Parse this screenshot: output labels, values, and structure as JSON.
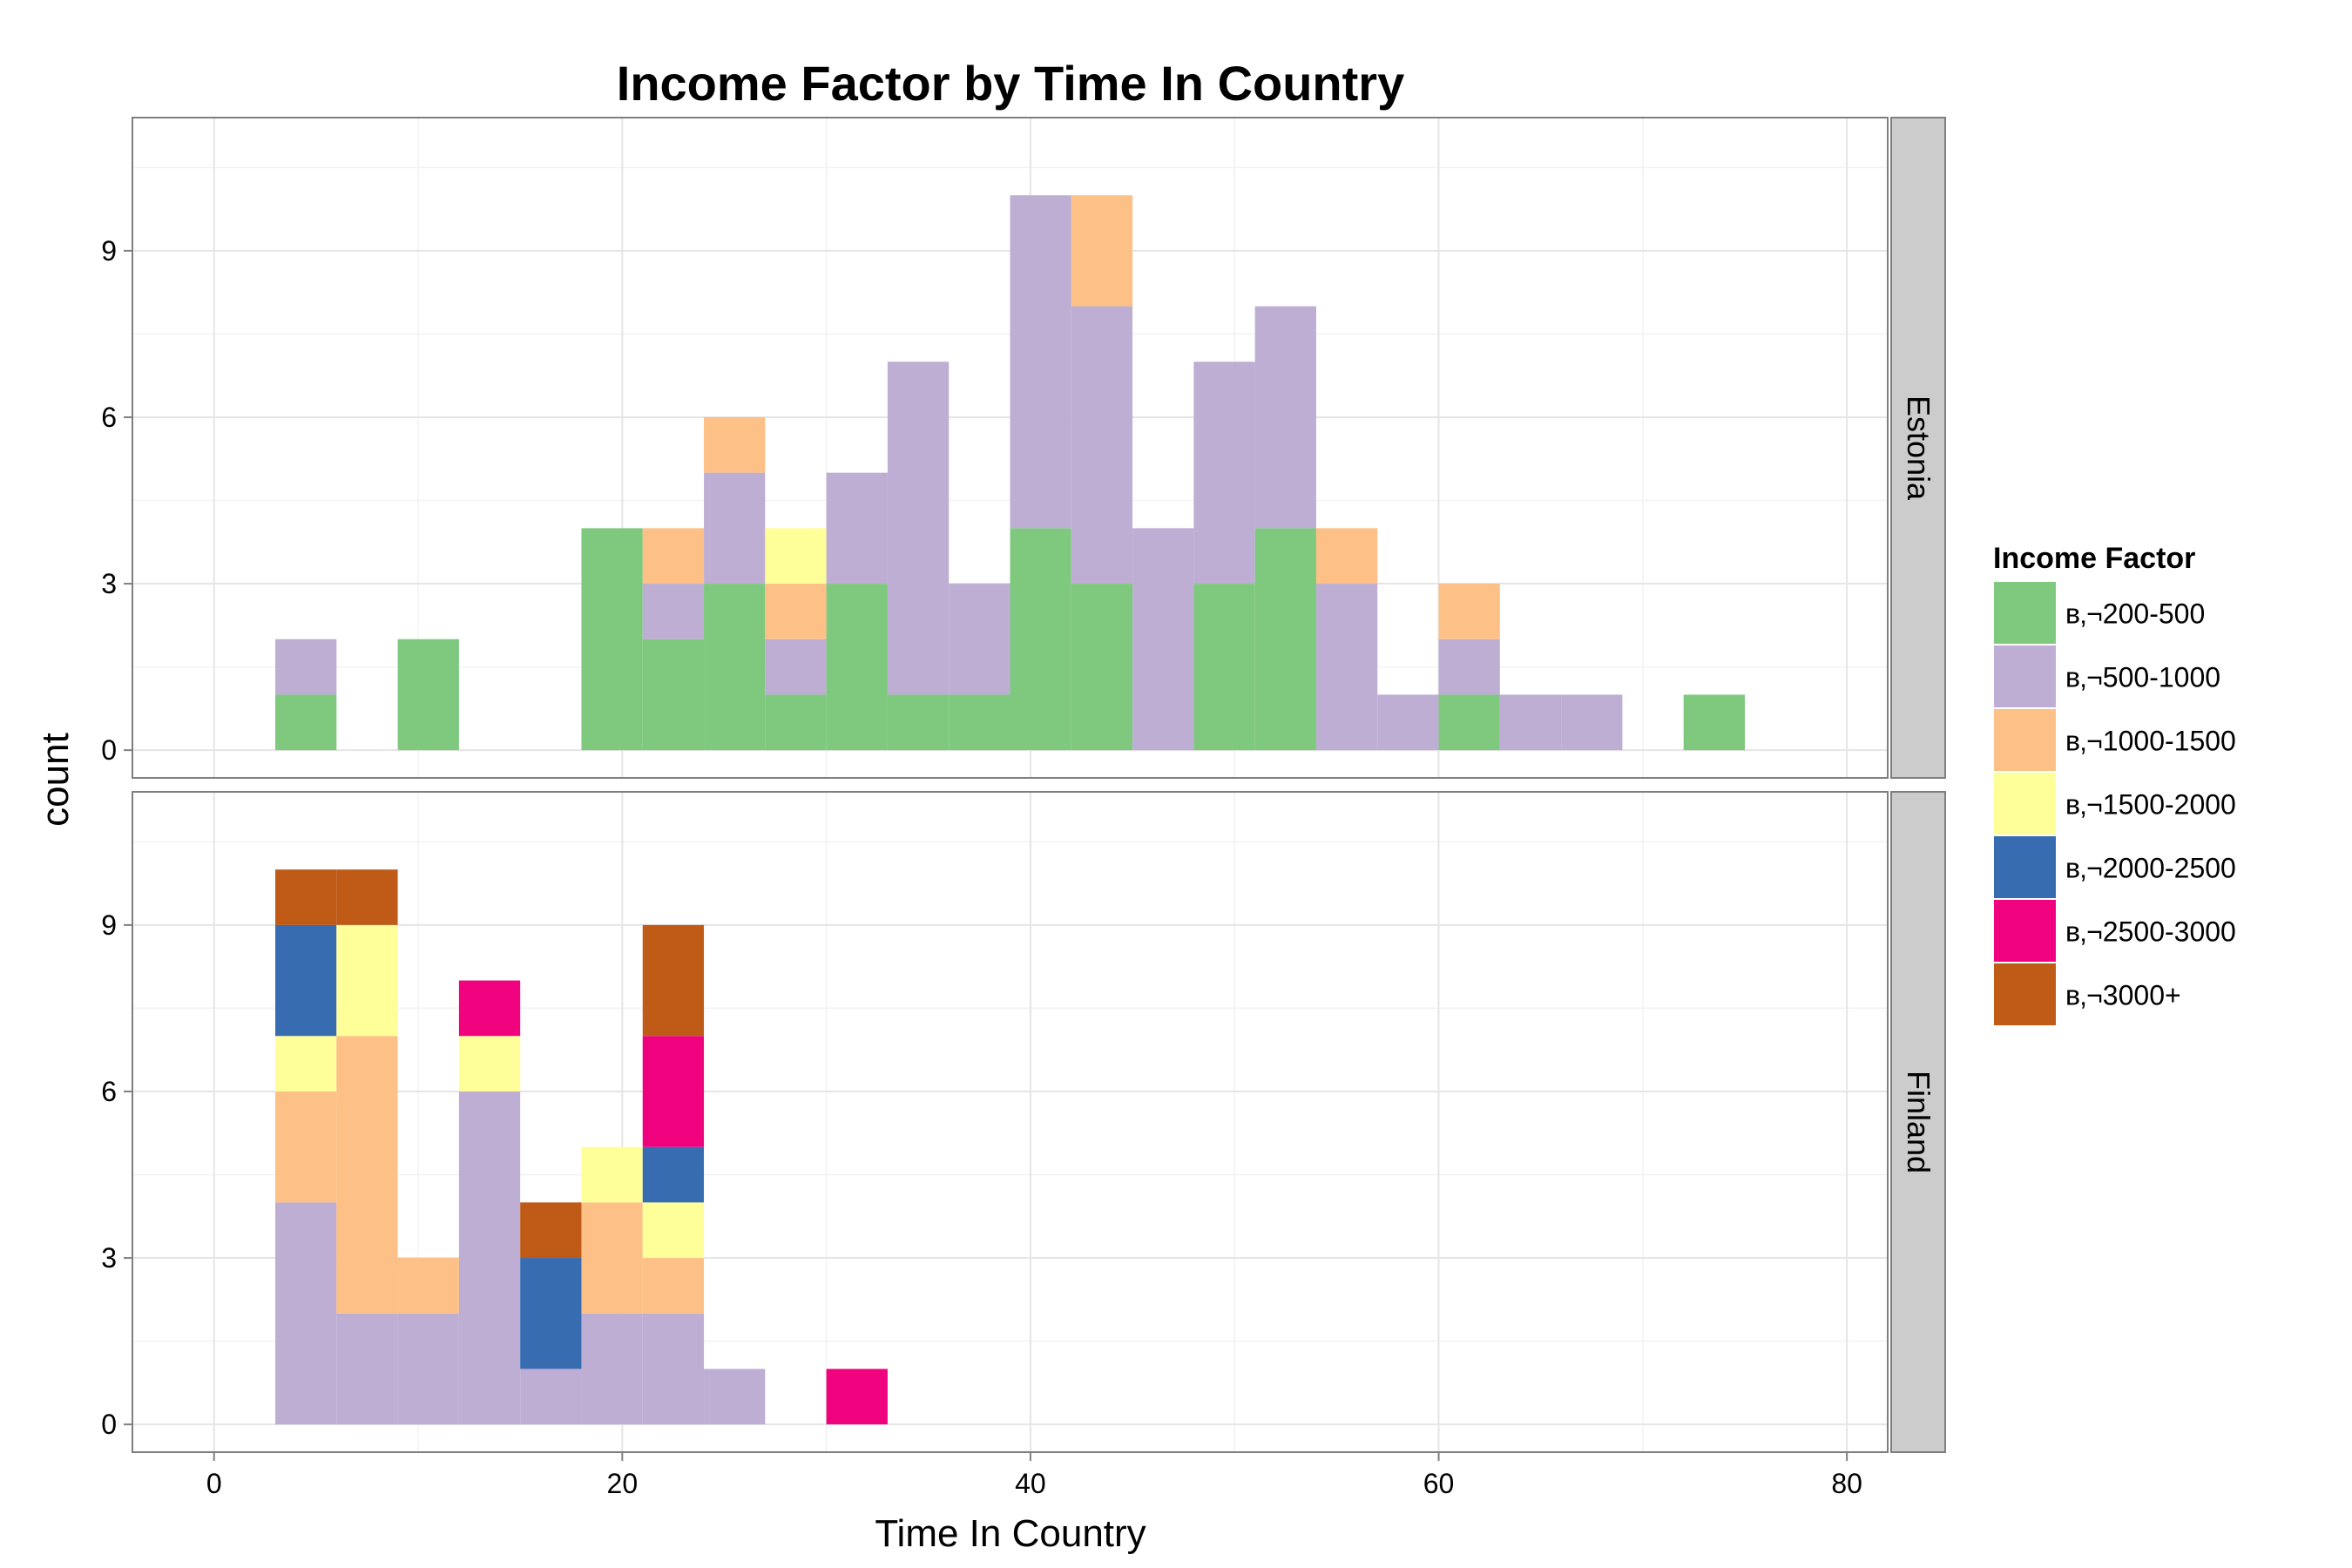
{
  "chart_data": {
    "type": "bar",
    "subtype": "stacked-histogram-faceted",
    "title": "Income Factor by Time In Country",
    "xlabel": "Time In Country",
    "ylabel": "count",
    "xlim": [
      -4,
      82
    ],
    "ylim": [
      -0.5,
      11.4
    ],
    "xticks": [
      0,
      20,
      40,
      60,
      80
    ],
    "yticks": [
      0,
      3,
      6,
      9
    ],
    "bin_width": 3,
    "grid": true,
    "legend": {
      "title": "Income Factor",
      "placement": "right",
      "entries": [
        {
          "label": "в‚¬200-500",
          "color": "#7FC97F"
        },
        {
          "label": "в‚¬500-1000",
          "color": "#BEAED4"
        },
        {
          "label": "в‚¬1000-1500",
          "color": "#FDC086"
        },
        {
          "label": "в‚¬1500-2000",
          "color": "#FFFF99"
        },
        {
          "label": "в‚¬2000-2500",
          "color": "#386CB0"
        },
        {
          "label": "в‚¬2500-3000",
          "color": "#F0027F"
        },
        {
          "label": "в‚¬3000+",
          "color": "#BF5B17"
        }
      ]
    },
    "facets": [
      {
        "name": "Estonia",
        "bins": [
          {
            "x0": 3,
            "counts": [
              1,
              1,
              0,
              0,
              0,
              0,
              0
            ]
          },
          {
            "x0": 9,
            "counts": [
              2,
              0,
              0,
              0,
              0,
              0,
              0
            ]
          },
          {
            "x0": 18,
            "counts": [
              4,
              0,
              0,
              0,
              0,
              0,
              0
            ]
          },
          {
            "x0": 21,
            "counts": [
              2,
              1,
              1,
              0,
              0,
              0,
              0
            ]
          },
          {
            "x0": 24,
            "counts": [
              3,
              2,
              1,
              0,
              0,
              0,
              0
            ]
          },
          {
            "x0": 27,
            "counts": [
              1,
              1,
              1,
              1,
              0,
              0,
              0
            ]
          },
          {
            "x0": 30,
            "counts": [
              3,
              2,
              0,
              0,
              0,
              0,
              0
            ]
          },
          {
            "x0": 33,
            "counts": [
              1,
              6,
              0,
              0,
              0,
              0,
              0
            ]
          },
          {
            "x0": 36,
            "counts": [
              1,
              2,
              0,
              0,
              0,
              0,
              0
            ]
          },
          {
            "x0": 39,
            "counts": [
              4,
              6,
              0,
              0,
              0,
              0,
              0
            ]
          },
          {
            "x0": 42,
            "counts": [
              3,
              5,
              2,
              0,
              0,
              0,
              0
            ]
          },
          {
            "x0": 45,
            "counts": [
              0,
              4,
              0,
              0,
              0,
              0,
              0
            ]
          },
          {
            "x0": 48,
            "counts": [
              3,
              4,
              0,
              0,
              0,
              0,
              0
            ]
          },
          {
            "x0": 51,
            "counts": [
              4,
              4,
              0,
              0,
              0,
              0,
              0
            ]
          },
          {
            "x0": 54,
            "counts": [
              0,
              3,
              1,
              0,
              0,
              0,
              0
            ]
          },
          {
            "x0": 57,
            "counts": [
              0,
              1,
              0,
              0,
              0,
              0,
              0
            ]
          },
          {
            "x0": 60,
            "counts": [
              1,
              1,
              1,
              0,
              0,
              0,
              0
            ]
          },
          {
            "x0": 63,
            "counts": [
              0,
              1,
              0,
              0,
              0,
              0,
              0
            ]
          },
          {
            "x0": 66,
            "counts": [
              0,
              1,
              0,
              0,
              0,
              0,
              0
            ]
          },
          {
            "x0": 72,
            "counts": [
              1,
              0,
              0,
              0,
              0,
              0,
              0
            ]
          }
        ]
      },
      {
        "name": "Finland",
        "bins": [
          {
            "x0": 3,
            "counts": [
              0,
              4,
              2,
              1,
              2,
              0,
              1
            ]
          },
          {
            "x0": 6,
            "counts": [
              0,
              2,
              5,
              2,
              0,
              0,
              1
            ]
          },
          {
            "x0": 9,
            "counts": [
              0,
              2,
              1,
              0,
              0,
              0,
              0
            ]
          },
          {
            "x0": 12,
            "counts": [
              0,
              6,
              0,
              1,
              0,
              1,
              0
            ]
          },
          {
            "x0": 15,
            "counts": [
              0,
              1,
              0,
              0,
              2,
              0,
              1
            ]
          },
          {
            "x0": 18,
            "counts": [
              0,
              2,
              2,
              1,
              0,
              0,
              0
            ]
          },
          {
            "x0": 21,
            "counts": [
              0,
              2,
              1,
              1,
              1,
              2,
              2
            ]
          },
          {
            "x0": 24,
            "counts": [
              0,
              1,
              0,
              0,
              0,
              0,
              0
            ]
          },
          {
            "x0": 30,
            "counts": [
              0,
              0,
              0,
              0,
              0,
              1,
              0
            ]
          }
        ]
      }
    ]
  }
}
